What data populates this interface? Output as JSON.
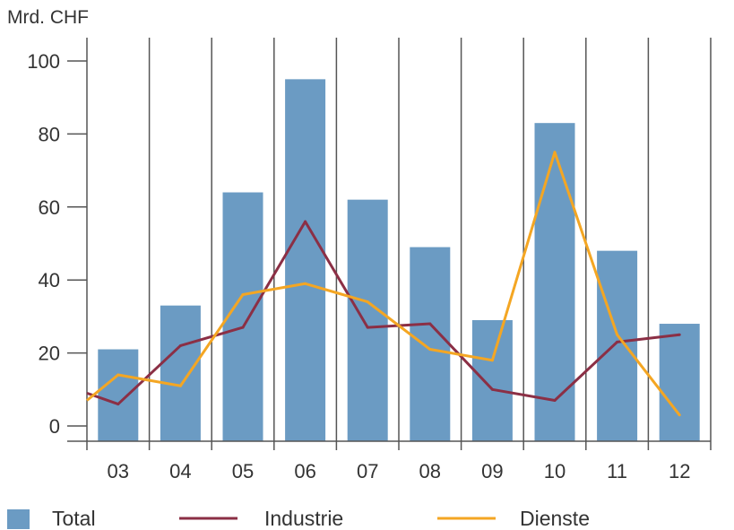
{
  "chart_data": {
    "type": "bar",
    "unit_label": "Mrd. CHF",
    "categories": [
      "03",
      "04",
      "05",
      "06",
      "07",
      "08",
      "09",
      "10",
      "11",
      "12"
    ],
    "ylim": [
      0,
      100
    ],
    "yticks": [
      "0",
      "20",
      "40",
      "60",
      "80",
      "100"
    ],
    "grid": "vertical",
    "legend_position": "bottom",
    "series": [
      {
        "name": "Total",
        "kind": "bar",
        "color": "#6b9bc3",
        "values": [
          21,
          33,
          64,
          95,
          62,
          49,
          29,
          83,
          48,
          28
        ]
      },
      {
        "name": "Industrie",
        "kind": "line",
        "color": "#8b2f45",
        "values": [
          6,
          22,
          27,
          56,
          27,
          28,
          10,
          7,
          23,
          25
        ]
      },
      {
        "name": "Dienste",
        "kind": "line",
        "color": "#f4a623",
        "values": [
          14,
          11,
          36,
          39,
          34,
          21,
          18,
          75,
          25,
          3
        ]
      }
    ],
    "line_start": {
      "x_offset": -0.5,
      "Industrie": 9,
      "Dienste": 7
    }
  }
}
